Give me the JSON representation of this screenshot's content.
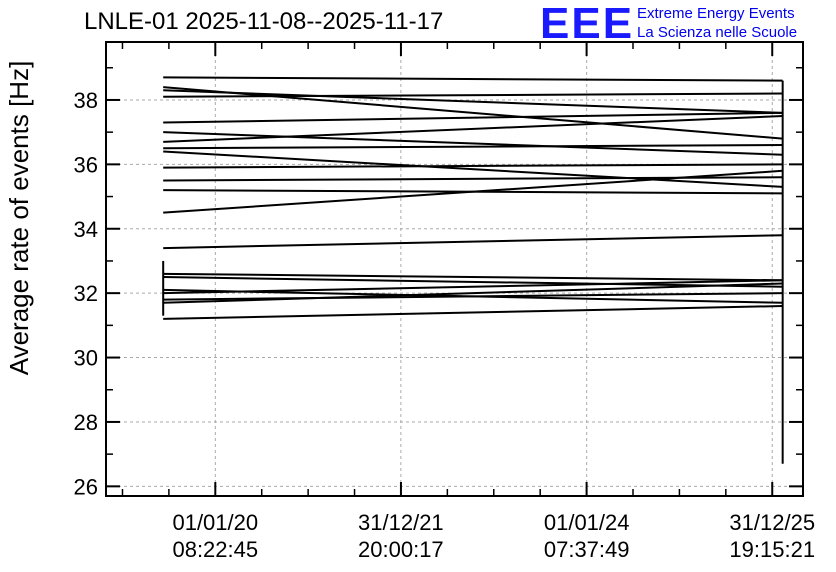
{
  "header": {
    "title": "LNLE-01 2025-11-08--2025-11-17",
    "logo_text": "EEE",
    "logo_line1": "Extreme Energy Events",
    "logo_line2": "La Scienza nelle Scuole"
  },
  "colors": {
    "axis": "#000000",
    "grid": "#aaaaaa",
    "logo": "#1a1aff",
    "lines": "#000000"
  },
  "chart_data": {
    "type": "line",
    "title": "LNLE-01 2025-11-08--2025-11-17",
    "xlabel": "",
    "ylabel": "Average rate of events [Hz]",
    "ylim": [
      25.7,
      39.8
    ],
    "xlim": [
      "2018-10-28",
      "2026-05-01"
    ],
    "grid": true,
    "x_ticks": [
      {
        "date": "2020-01-01",
        "line1": "01/01/20",
        "line2": "08:22:45"
      },
      {
        "date": "2021-12-31",
        "line1": "31/12/21",
        "line2": "20:00:17"
      },
      {
        "date": "2024-01-01",
        "line1": "01/01/24",
        "line2": "07:37:49"
      },
      {
        "date": "2025-12-31",
        "line1": "31/12/25",
        "line2": "19:15:21"
      }
    ],
    "y_ticks": [
      26,
      28,
      30,
      32,
      34,
      36,
      38
    ],
    "x_start": "2019-06-10",
    "x_end": "2026-02-10",
    "series": [
      {
        "values": [
          38.7,
          38.6
        ]
      },
      {
        "values": [
          38.4,
          36.8
        ]
      },
      {
        "values": [
          38.3,
          37.6
        ]
      },
      {
        "values": [
          38.1,
          38.2
        ]
      },
      {
        "values": [
          37.3,
          37.6
        ]
      },
      {
        "values": [
          37.0,
          36.3
        ]
      },
      {
        "values": [
          36.7,
          37.5
        ]
      },
      {
        "values": [
          36.5,
          36.6
        ]
      },
      {
        "values": [
          36.4,
          35.3
        ]
      },
      {
        "values": [
          35.9,
          36.0
        ]
      },
      {
        "values": [
          35.5,
          35.6
        ]
      },
      {
        "values": [
          35.2,
          35.1
        ]
      },
      {
        "values": [
          34.5,
          35.8
        ]
      },
      {
        "values": [
          33.4,
          33.8
        ]
      },
      {
        "values": [
          32.6,
          32.4
        ]
      },
      {
        "values": [
          32.5,
          32.2
        ]
      },
      {
        "values": [
          32.1,
          31.7
        ]
      },
      {
        "values": [
          32.0,
          32.4
        ]
      },
      {
        "values": [
          31.8,
          32.0
        ]
      },
      {
        "values": [
          31.7,
          32.3
        ]
      },
      {
        "values": [
          31.2,
          31.6
        ]
      }
    ],
    "vertical_segments": [
      {
        "x": "2019-06-10",
        "y0": 31.3,
        "y1": 33.0
      },
      {
        "x": "2026-02-10",
        "y0": 26.7,
        "y1": 38.6
      }
    ]
  }
}
